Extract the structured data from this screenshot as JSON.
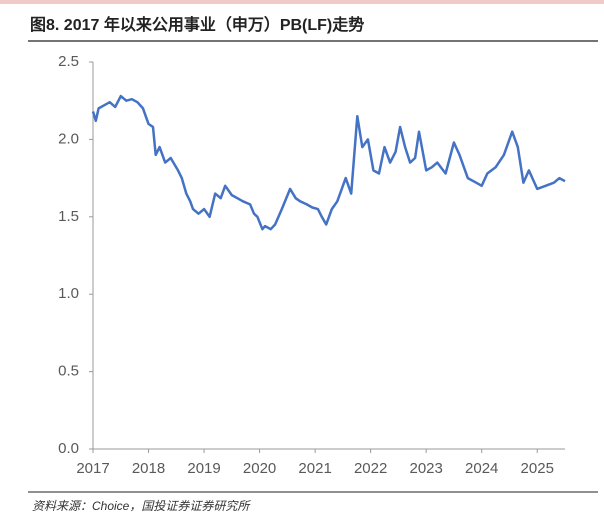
{
  "chart_data": {
    "type": "line",
    "title": "图8. 2017 年以来公用事业（申万）PB(LF)走势",
    "source": "资料来源：Choice，国投证券证券研究所",
    "xlim": [
      2017,
      2025.5
    ],
    "xticks": [
      2017,
      2018,
      2019,
      2020,
      2021,
      2022,
      2023,
      2024,
      2025
    ],
    "ylim": [
      0,
      2.5
    ],
    "yticks": [
      {
        "value": 0,
        "label": "0.0"
      },
      0.5,
      {
        "value": 1,
        "label": "1.0"
      },
      1.5,
      {
        "value": 2,
        "label": "2.0"
      },
      2.5
    ],
    "grid": false,
    "series": [
      {
        "color": "#4472c4",
        "x": [
          2017.0,
          2017.05,
          2017.1,
          2017.2,
          2017.3,
          2017.4,
          2017.5,
          2017.6,
          2017.7,
          2017.8,
          2017.9,
          2018.0,
          2018.08,
          2018.13,
          2018.2,
          2018.3,
          2018.4,
          2018.53,
          2018.6,
          2018.68,
          2018.75,
          2018.8,
          2018.9,
          2019.0,
          2019.1,
          2019.2,
          2019.3,
          2019.38,
          2019.5,
          2019.6,
          2019.7,
          2019.83,
          2019.9,
          2019.96,
          2020.05,
          2020.1,
          2020.2,
          2020.28,
          2020.4,
          2020.55,
          2020.65,
          2020.73,
          2020.85,
          2020.95,
          2021.05,
          2021.12,
          2021.2,
          2021.3,
          2021.4,
          2021.55,
          2021.65,
          2021.76,
          2021.85,
          2021.95,
          2022.05,
          2022.15,
          2022.25,
          2022.35,
          2022.45,
          2022.53,
          2022.62,
          2022.71,
          2022.8,
          2022.87,
          2023.0,
          2023.1,
          2023.2,
          2023.35,
          2023.5,
          2023.6,
          2023.75,
          2023.9,
          2024.0,
          2024.1,
          2024.25,
          2024.4,
          2024.55,
          2024.65,
          2024.75,
          2024.85,
          2025.0,
          2025.15,
          2025.3,
          2025.4,
          2025.5
        ],
        "values": [
          2.18,
          2.12,
          2.2,
          2.22,
          2.24,
          2.21,
          2.28,
          2.25,
          2.26,
          2.24,
          2.2,
          2.1,
          2.08,
          1.9,
          1.95,
          1.85,
          1.88,
          1.8,
          1.75,
          1.65,
          1.6,
          1.55,
          1.52,
          1.55,
          1.5,
          1.65,
          1.62,
          1.7,
          1.64,
          1.62,
          1.6,
          1.58,
          1.52,
          1.5,
          1.42,
          1.44,
          1.42,
          1.45,
          1.55,
          1.68,
          1.62,
          1.6,
          1.58,
          1.56,
          1.55,
          1.5,
          1.45,
          1.55,
          1.6,
          1.75,
          1.65,
          2.15,
          1.95,
          2.0,
          1.8,
          1.78,
          1.95,
          1.85,
          1.92,
          2.08,
          1.95,
          1.85,
          1.88,
          2.05,
          1.8,
          1.82,
          1.85,
          1.78,
          1.98,
          1.9,
          1.75,
          1.72,
          1.7,
          1.78,
          1.82,
          1.9,
          2.05,
          1.95,
          1.72,
          1.8,
          1.68,
          1.7,
          1.72,
          1.75,
          1.73
        ]
      }
    ]
  }
}
